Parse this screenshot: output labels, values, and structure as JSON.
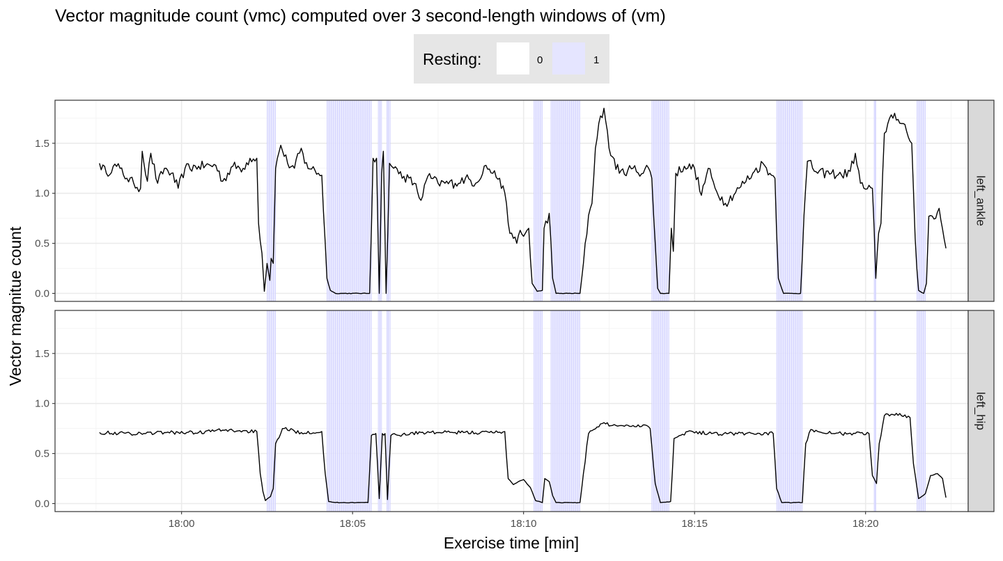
{
  "chart_data": {
    "type": "line",
    "title": "Vector magnitude count (vmc) computed over 3 second-length windows of (vm)",
    "xlabel": "Exercise time [min]",
    "ylabel": "Vector magnitue count",
    "x_ticks": [
      "18:00",
      "18:05",
      "18:10",
      "18:15",
      "18:20"
    ],
    "y_ticks": [
      "0.0",
      "0.5",
      "1.0",
      "1.5"
    ],
    "x_range_minutes": [
      -3.7,
      23.0
    ],
    "x_tick_minutes": [
      0,
      5,
      10,
      15,
      20
    ],
    "ylim": [
      -0.08,
      1.93
    ],
    "grid": true,
    "legend": {
      "title": "Resting:",
      "position": "top",
      "items": [
        {
          "label": "0",
          "color": "#ffffff"
        },
        {
          "label": "1",
          "color": "#e5e5ff"
        }
      ]
    },
    "resting_intervals_minutes": [
      [
        2.5,
        2.75
      ],
      [
        4.25,
        5.55
      ],
      [
        5.75,
        5.85
      ],
      [
        6.0,
        6.1
      ],
      [
        10.3,
        10.55
      ],
      [
        10.8,
        11.65
      ],
      [
        13.75,
        14.25
      ],
      [
        17.4,
        18.15
      ],
      [
        20.25,
        20.3
      ],
      [
        21.5,
        21.75
      ]
    ],
    "series_color": "#000000",
    "panels": [
      {
        "name": "left_ankle",
        "anchors": [
          [
            -2.4,
            1.3
          ],
          [
            -2.2,
            1.2
          ],
          [
            -2.0,
            1.27
          ],
          [
            -1.8,
            1.25
          ],
          [
            -1.6,
            1.15
          ],
          [
            -1.4,
            1.1
          ],
          [
            -1.2,
            1.05
          ],
          [
            -1.15,
            1.42
          ],
          [
            -1.0,
            1.12
          ],
          [
            -0.9,
            1.4
          ],
          [
            -0.7,
            1.1
          ],
          [
            -0.5,
            1.25
          ],
          [
            -0.3,
            1.2
          ],
          [
            -0.1,
            1.05
          ],
          [
            0.1,
            1.25
          ],
          [
            0.5,
            1.27
          ],
          [
            1.0,
            1.28
          ],
          [
            1.2,
            1.12
          ],
          [
            1.5,
            1.27
          ],
          [
            1.8,
            1.25
          ],
          [
            2.0,
            1.35
          ],
          [
            2.2,
            1.35
          ],
          [
            2.25,
            0.7
          ],
          [
            2.35,
            0.4
          ],
          [
            2.42,
            0.02
          ],
          [
            2.5,
            0.3
          ],
          [
            2.58,
            0.13
          ],
          [
            2.62,
            0.35
          ],
          [
            2.68,
            0.3
          ],
          [
            2.75,
            1.25
          ],
          [
            2.9,
            1.48
          ],
          [
            3.1,
            1.3
          ],
          [
            3.3,
            1.25
          ],
          [
            3.5,
            1.45
          ],
          [
            3.6,
            1.3
          ],
          [
            4.0,
            1.2
          ],
          [
            4.1,
            1.18
          ],
          [
            4.25,
            0.15
          ],
          [
            4.35,
            0.03
          ],
          [
            4.5,
            0.0
          ],
          [
            5.5,
            0.0
          ],
          [
            5.6,
            1.35
          ],
          [
            5.7,
            1.35
          ],
          [
            5.78,
            0.0
          ],
          [
            5.85,
            1.2
          ],
          [
            5.9,
            1.42
          ],
          [
            5.98,
            0.0
          ],
          [
            6.08,
            1.3
          ],
          [
            6.2,
            1.25
          ],
          [
            6.5,
            1.17
          ],
          [
            6.8,
            1.1
          ],
          [
            7.0,
            0.93
          ],
          [
            7.2,
            1.17
          ],
          [
            7.5,
            1.1
          ],
          [
            8.0,
            1.1
          ],
          [
            8.3,
            1.15
          ],
          [
            8.6,
            1.1
          ],
          [
            8.9,
            1.28
          ],
          [
            9.1,
            1.2
          ],
          [
            9.3,
            1.15
          ],
          [
            9.5,
            0.9
          ],
          [
            9.6,
            0.6
          ],
          [
            9.7,
            0.55
          ],
          [
            9.8,
            0.5
          ],
          [
            9.9,
            0.63
          ],
          [
            10.0,
            0.57
          ],
          [
            10.15,
            0.65
          ],
          [
            10.25,
            0.1
          ],
          [
            10.4,
            0.02
          ],
          [
            10.55,
            0.03
          ],
          [
            10.6,
            0.65
          ],
          [
            10.75,
            0.8
          ],
          [
            10.85,
            0.15
          ],
          [
            10.95,
            0.0
          ],
          [
            11.65,
            0.0
          ],
          [
            11.75,
            0.3
          ],
          [
            11.9,
            0.78
          ],
          [
            12.0,
            0.9
          ],
          [
            12.1,
            1.45
          ],
          [
            12.2,
            1.7
          ],
          [
            12.35,
            1.85
          ],
          [
            12.5,
            1.45
          ],
          [
            12.8,
            1.2
          ],
          [
            13.2,
            1.25
          ],
          [
            13.5,
            1.2
          ],
          [
            13.6,
            1.28
          ],
          [
            13.75,
            1.15
          ],
          [
            13.85,
            0.5
          ],
          [
            13.92,
            0.05
          ],
          [
            14.0,
            0.0
          ],
          [
            14.25,
            0.0
          ],
          [
            14.32,
            0.65
          ],
          [
            14.38,
            0.42
          ],
          [
            14.45,
            1.2
          ],
          [
            14.7,
            1.27
          ],
          [
            15.0,
            1.25
          ],
          [
            15.2,
            0.98
          ],
          [
            15.4,
            1.25
          ],
          [
            15.6,
            1.05
          ],
          [
            15.9,
            0.9
          ],
          [
            16.3,
            1.05
          ],
          [
            16.7,
            1.2
          ],
          [
            17.0,
            1.3
          ],
          [
            17.2,
            1.2
          ],
          [
            17.35,
            1.15
          ],
          [
            17.45,
            0.15
          ],
          [
            17.6,
            0.0
          ],
          [
            18.1,
            0.0
          ],
          [
            18.2,
            0.78
          ],
          [
            18.3,
            1.32
          ],
          [
            18.6,
            1.2
          ],
          [
            19.0,
            1.2
          ],
          [
            19.3,
            1.18
          ],
          [
            19.55,
            1.22
          ],
          [
            19.7,
            1.4
          ],
          [
            19.85,
            1.1
          ],
          [
            19.95,
            1.05
          ],
          [
            20.2,
            1.05
          ],
          [
            20.3,
            0.15
          ],
          [
            20.38,
            0.6
          ],
          [
            20.45,
            0.7
          ],
          [
            20.55,
            1.6
          ],
          [
            20.7,
            1.75
          ],
          [
            20.85,
            1.8
          ],
          [
            21.0,
            1.7
          ],
          [
            21.2,
            1.62
          ],
          [
            21.35,
            1.5
          ],
          [
            21.45,
            0.55
          ],
          [
            21.5,
            0.25
          ],
          [
            21.55,
            0.03
          ],
          [
            21.7,
            0.0
          ],
          [
            21.78,
            0.1
          ],
          [
            21.85,
            0.77
          ],
          [
            22.05,
            0.75
          ],
          [
            22.15,
            0.85
          ],
          [
            22.35,
            0.45
          ]
        ]
      },
      {
        "name": "left_hip",
        "anchors": [
          [
            -2.4,
            0.71
          ],
          [
            -1.5,
            0.7
          ],
          [
            -0.5,
            0.71
          ],
          [
            0.5,
            0.71
          ],
          [
            1.0,
            0.73
          ],
          [
            1.5,
            0.73
          ],
          [
            2.2,
            0.72
          ],
          [
            2.3,
            0.3
          ],
          [
            2.38,
            0.12
          ],
          [
            2.45,
            0.03
          ],
          [
            2.6,
            0.07
          ],
          [
            2.68,
            0.15
          ],
          [
            2.75,
            0.6
          ],
          [
            2.95,
            0.75
          ],
          [
            3.5,
            0.71
          ],
          [
            4.1,
            0.72
          ],
          [
            4.2,
            0.3
          ],
          [
            4.3,
            0.02
          ],
          [
            4.5,
            0.01
          ],
          [
            5.45,
            0.01
          ],
          [
            5.55,
            0.68
          ],
          [
            5.68,
            0.7
          ],
          [
            5.78,
            0.05
          ],
          [
            5.87,
            0.7
          ],
          [
            5.95,
            0.7
          ],
          [
            6.02,
            0.04
          ],
          [
            6.12,
            0.68
          ],
          [
            7.0,
            0.71
          ],
          [
            8.0,
            0.71
          ],
          [
            9.0,
            0.71
          ],
          [
            9.45,
            0.72
          ],
          [
            9.55,
            0.25
          ],
          [
            9.7,
            0.19
          ],
          [
            9.85,
            0.22
          ],
          [
            10.0,
            0.24
          ],
          [
            10.2,
            0.16
          ],
          [
            10.35,
            0.03
          ],
          [
            10.55,
            0.01
          ],
          [
            10.62,
            0.25
          ],
          [
            10.75,
            0.22
          ],
          [
            10.85,
            0.08
          ],
          [
            10.95,
            0.01
          ],
          [
            11.65,
            0.01
          ],
          [
            11.75,
            0.3
          ],
          [
            11.9,
            0.7
          ],
          [
            12.3,
            0.8
          ],
          [
            12.7,
            0.78
          ],
          [
            13.2,
            0.78
          ],
          [
            13.6,
            0.78
          ],
          [
            13.7,
            0.75
          ],
          [
            13.85,
            0.2
          ],
          [
            14.0,
            0.01
          ],
          [
            14.3,
            0.02
          ],
          [
            14.4,
            0.65
          ],
          [
            14.8,
            0.72
          ],
          [
            15.5,
            0.7
          ],
          [
            16.5,
            0.7
          ],
          [
            17.3,
            0.7
          ],
          [
            17.4,
            0.15
          ],
          [
            17.55,
            0.01
          ],
          [
            18.15,
            0.01
          ],
          [
            18.25,
            0.6
          ],
          [
            18.4,
            0.74
          ],
          [
            19.0,
            0.7
          ],
          [
            19.5,
            0.7
          ],
          [
            20.1,
            0.7
          ],
          [
            20.2,
            0.28
          ],
          [
            20.32,
            0.2
          ],
          [
            20.4,
            0.6
          ],
          [
            20.55,
            0.88
          ],
          [
            21.0,
            0.9
          ],
          [
            21.3,
            0.86
          ],
          [
            21.4,
            0.4
          ],
          [
            21.55,
            0.05
          ],
          [
            21.75,
            0.1
          ],
          [
            21.9,
            0.28
          ],
          [
            22.1,
            0.3
          ],
          [
            22.25,
            0.25
          ],
          [
            22.35,
            0.06
          ]
        ]
      }
    ]
  }
}
